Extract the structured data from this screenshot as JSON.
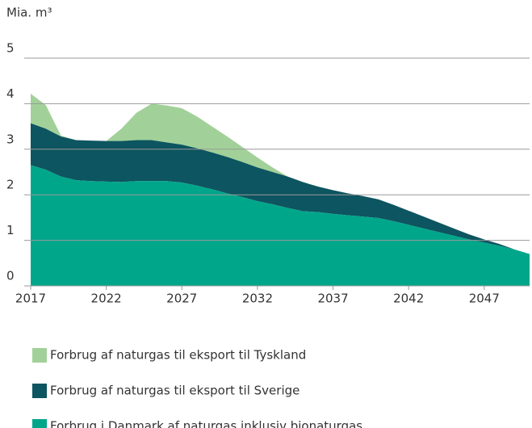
{
  "chart_data": {
    "type": "stacked_area",
    "y_axis_label": "Mia. m³",
    "x": [
      2017,
      2018,
      2019,
      2020,
      2021,
      2022,
      2023,
      2024,
      2025,
      2026,
      2027,
      2028,
      2029,
      2030,
      2031,
      2032,
      2033,
      2034,
      2035,
      2036,
      2037,
      2038,
      2039,
      2040,
      2041,
      2042,
      2043,
      2044,
      2045,
      2046,
      2047,
      2048,
      2049,
      2050
    ],
    "xlim": [
      2017,
      2050
    ],
    "xticks": [
      2017,
      2022,
      2027,
      2032,
      2037,
      2042,
      2047
    ],
    "ylim": [
      0,
      5
    ],
    "yticks": [
      0,
      1,
      2,
      3,
      4,
      5
    ],
    "grid": true,
    "series": [
      {
        "name": "Forbrug i Danmark af naturgas inklusiv bionaturgas",
        "color": "#00a68a",
        "values": [
          2.65,
          2.55,
          2.4,
          2.32,
          2.3,
          2.29,
          2.28,
          2.3,
          2.3,
          2.3,
          2.27,
          2.2,
          2.12,
          2.03,
          1.95,
          1.86,
          1.79,
          1.71,
          1.64,
          1.62,
          1.58,
          1.55,
          1.52,
          1.49,
          1.42,
          1.34,
          1.26,
          1.18,
          1.1,
          1.02,
          0.95,
          0.88,
          0.8,
          0.7
        ]
      },
      {
        "name": "Forbrug af naturgas til eksport til Sverige",
        "color": "#0d5560",
        "values": [
          0.92,
          0.9,
          0.88,
          0.88,
          0.89,
          0.89,
          0.9,
          0.9,
          0.9,
          0.85,
          0.83,
          0.82,
          0.81,
          0.8,
          0.77,
          0.74,
          0.71,
          0.69,
          0.64,
          0.56,
          0.52,
          0.48,
          0.45,
          0.41,
          0.36,
          0.31,
          0.26,
          0.21,
          0.16,
          0.11,
          0.07,
          0.04,
          0,
          0
        ]
      },
      {
        "name": "Forbrug af naturgas til eksport til Tyskland",
        "color": "#a1d199",
        "values": [
          0.65,
          0.52,
          0.02,
          0,
          0,
          0,
          0.27,
          0.6,
          0.8,
          0.81,
          0.8,
          0.7,
          0.57,
          0.45,
          0.33,
          0.22,
          0.1,
          0,
          0,
          0,
          0,
          0,
          0,
          0,
          0,
          0,
          0,
          0,
          0,
          0,
          0,
          0,
          0,
          0
        ]
      }
    ]
  }
}
